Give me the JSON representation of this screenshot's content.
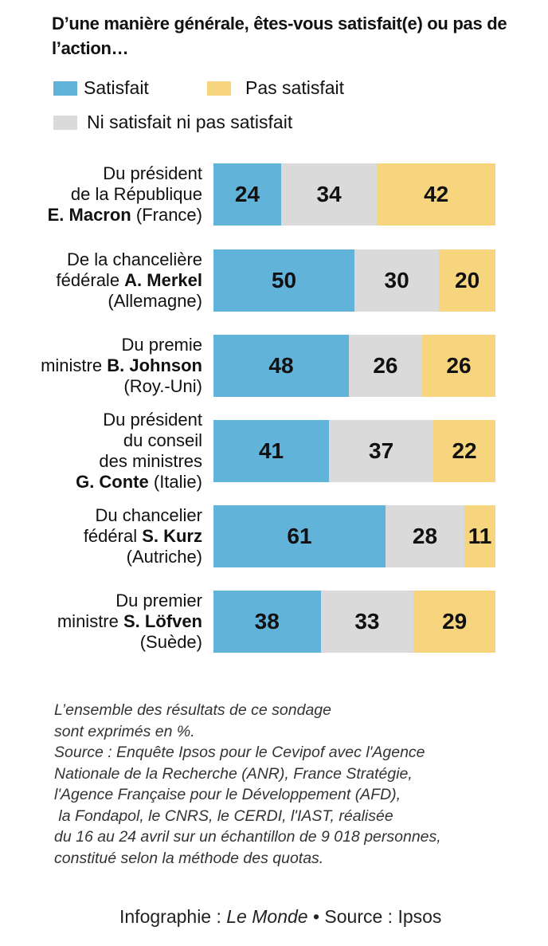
{
  "chart_data": {
    "type": "bar",
    "orientation": "horizontal",
    "stacked": true,
    "title": "D’une manière générale, êtes-vous satisfait(e) ou pas de l’action…",
    "unit": "%",
    "legend": [
      {
        "name": "Satisfait",
        "color": "#62b3d9"
      },
      {
        "name": "Pas satisfait",
        "color": "#f7d57f"
      },
      {
        "name": "Ni satisfait ni pas satisfait",
        "color": "#dadada"
      }
    ],
    "categories": [
      [
        [
          {
            "t": "Du président"
          }
        ],
        [
          {
            "t": "de la République"
          }
        ],
        [
          {
            "t": "E. Macron",
            "b": true
          },
          {
            "t": " (France)"
          }
        ]
      ],
      [
        [
          {
            "t": "De la chancelière"
          }
        ],
        [
          {
            "t": "fédérale "
          },
          {
            "t": "A. Merkel",
            "b": true
          }
        ],
        [
          {
            "t": "(Allemagne)"
          }
        ]
      ],
      [
        [
          {
            "t": "Du premie"
          }
        ],
        [
          {
            "t": "ministre "
          },
          {
            "t": "B. Johnson",
            "b": true
          }
        ],
        [
          {
            "t": "(Roy.-Uni)"
          }
        ]
      ],
      [
        [
          {
            "t": "Du président"
          }
        ],
        [
          {
            "t": "du conseil"
          }
        ],
        [
          {
            "t": "des ministres"
          }
        ],
        [
          {
            "t": "G. Conte",
            "b": true
          },
          {
            "t": " (Italie)"
          }
        ]
      ],
      [
        [
          {
            "t": "Du chancelier"
          }
        ],
        [
          {
            "t": "fédéral "
          },
          {
            "t": "S. Kurz",
            "b": true
          }
        ],
        [
          {
            "t": "(Autriche)"
          }
        ]
      ],
      [
        [
          {
            "t": "Du premier"
          }
        ],
        [
          {
            "t": "ministre "
          },
          {
            "t": "S. Löfven",
            "b": true
          }
        ],
        [
          {
            "t": "(Suède)"
          }
        ]
      ]
    ],
    "series": [
      {
        "name": "Satisfait",
        "color": "#62b3d9",
        "values": [
          24,
          50,
          48,
          41,
          61,
          38
        ]
      },
      {
        "name": "Ni satisfait ni pas satisfait",
        "color": "#dadada",
        "values": [
          34,
          30,
          26,
          37,
          28,
          33
        ]
      },
      {
        "name": "Pas satisfait",
        "color": "#f7d57f",
        "values": [
          42,
          20,
          26,
          22,
          11,
          29
        ]
      }
    ],
    "xlim": [
      0,
      100
    ]
  },
  "note": "L’ensemble des résultats de ce sondage\nsont exprimés en %.\nSource : Enquête Ipsos pour le Cevipof avec l'Agence\nNationale de la Recherche (ANR), France Stratégie,\nl'Agence Française pour le Développement (AFD),\n la Fondapol, le CNRS, le CERDI, l'IAST, réalisée\ndu 16 au 24 avril sur un échantillon de 9 018 personnes,\nconstitué selon la méthode des quotas.",
  "credit": {
    "prefix": "Infographie : ",
    "brand": "Le Monde",
    "suffix": " • Source : Ipsos"
  }
}
